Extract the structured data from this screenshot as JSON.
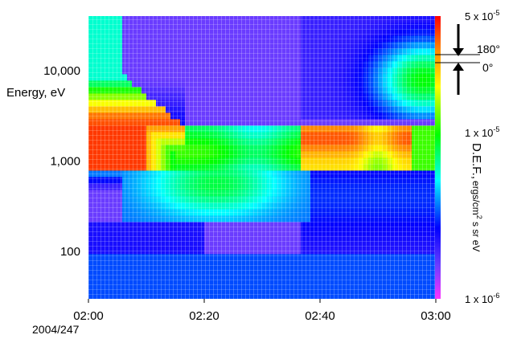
{
  "chart_data": {
    "type": "heatmap",
    "ylabel": "Energy, eV",
    "y_scale": "log",
    "y_ticks": [
      "10,000",
      "1,000",
      "100"
    ],
    "y_tick_values": [
      10000,
      1000,
      100
    ],
    "ylim": [
      30,
      40000
    ],
    "x_ticks": [
      "02:00",
      "02:20",
      "02:40",
      "03:00"
    ],
    "xlim": [
      "02:00",
      "03:00"
    ],
    "date_label": "2004/247",
    "colorbar": {
      "label_main": "D.E.F.,",
      "label_units": "ergs/cm",
      "label_exp": "2",
      "label_units_rest": " s sr eV",
      "scale": "log",
      "range": [
        1e-06,
        5e-05
      ],
      "ticks": [
        {
          "mantissa": "5 x 10",
          "exp": "-5",
          "value": 5e-05
        },
        {
          "mantissa": "1 x 10",
          "exp": "-5",
          "value": 1e-05
        },
        {
          "mantissa": "1 x 10",
          "exp": "-6",
          "value": 1e-06
        }
      ],
      "colors": [
        "#ff00ff",
        "#0000ff",
        "#00ffff",
        "#00ff00",
        "#ffff00",
        "#ff0000"
      ]
    },
    "angle_key": {
      "upper": "180°",
      "lower": "0°"
    },
    "grid": false,
    "features": [
      {
        "time": [
          "02:00",
          "02:10"
        ],
        "energy_ev": [
          700,
          3000
        ],
        "level": "high"
      },
      {
        "time": [
          "02:10",
          "02:37"
        ],
        "energy_ev": [
          700,
          3000
        ],
        "level": "medium"
      },
      {
        "time": [
          "02:38",
          "02:55"
        ],
        "energy_ev": [
          700,
          3000
        ],
        "level": "high"
      },
      {
        "time": [
          "02:00",
          "02:10"
        ],
        "energy_ev": [
          3000,
          8000
        ],
        "level": "high"
      },
      {
        "time": [
          "02:20",
          "02:37"
        ],
        "energy_ev": [
          8000,
          40000
        ],
        "level": "low"
      }
    ]
  }
}
